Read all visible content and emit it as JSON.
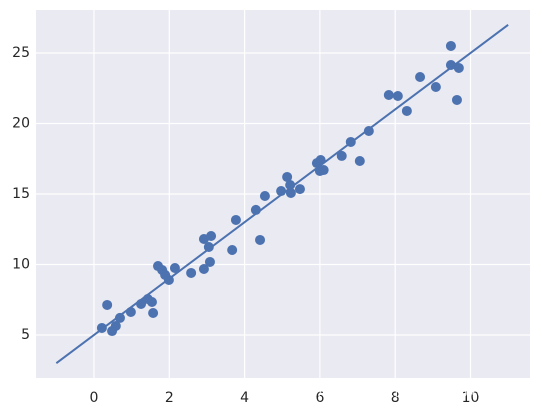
{
  "chart_data": {
    "type": "scatter",
    "xlim": [
      -1.54,
      11.58
    ],
    "ylim": [
      1.95,
      28.05
    ],
    "xticks": [
      0,
      2,
      4,
      6,
      8,
      10
    ],
    "yticks": [
      5,
      10,
      15,
      20,
      25
    ],
    "grid": true,
    "background": "#eaeaf2",
    "series": [
      {
        "type": "scatter",
        "color": "#4c72b0",
        "x": [
          0.21,
          0.35,
          0.48,
          0.58,
          0.69,
          0.98,
          1.25,
          1.43,
          1.54,
          1.57,
          1.7,
          1.81,
          1.89,
          1.99,
          2.15,
          2.58,
          2.92,
          2.92,
          3.05,
          3.08,
          3.11,
          3.67,
          3.77,
          4.3,
          4.41,
          4.54,
          4.97,
          5.13,
          5.21,
          5.23,
          5.47,
          5.92,
          6.0,
          6.02,
          6.1,
          6.58,
          6.82,
          7.06,
          7.3,
          7.83,
          8.07,
          8.31,
          8.66,
          9.08,
          9.48,
          9.48,
          9.64,
          9.69
        ],
        "values": [
          5.5,
          7.13,
          5.28,
          5.64,
          6.21,
          6.63,
          7.2,
          7.55,
          7.34,
          6.56,
          9.89,
          9.61,
          9.26,
          8.9,
          9.75,
          9.4,
          11.81,
          9.68,
          11.24,
          10.18,
          12.02,
          11.03,
          13.16,
          13.87,
          11.74,
          14.86,
          15.21,
          16.21,
          15.64,
          15.07,
          15.35,
          17.19,
          16.63,
          17.41,
          16.7,
          17.7,
          18.69,
          17.34,
          19.47,
          22.02,
          21.95,
          20.89,
          23.3,
          22.59,
          25.5,
          24.15,
          21.67,
          23.94
        ]
      },
      {
        "type": "line",
        "color": "#4c72b0",
        "x": [
          -1,
          11
        ],
        "values": [
          3.0,
          27.0
        ]
      }
    ],
    "watermark": "https://blog.csdn.net/zhw864680355"
  }
}
